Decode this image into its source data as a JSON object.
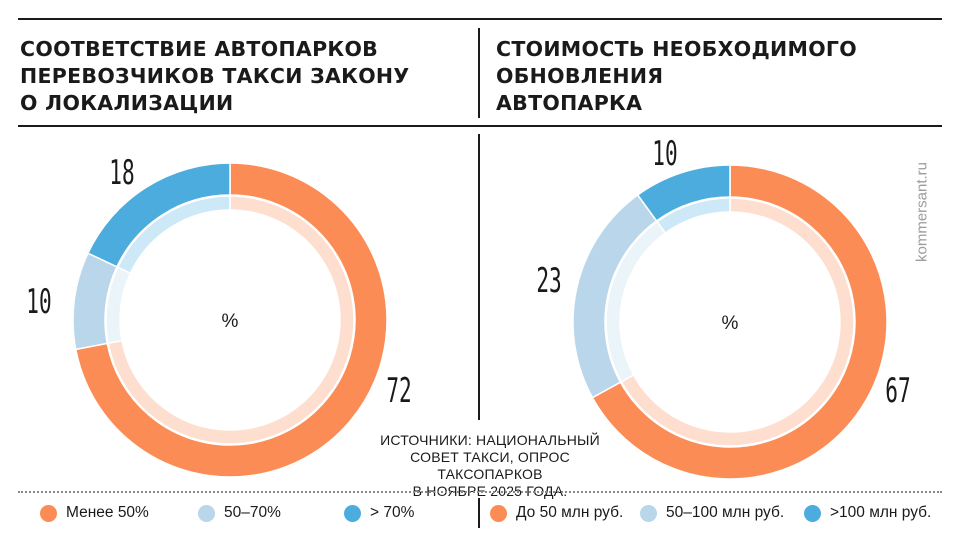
{
  "colors": {
    "orange": "#fb8c55",
    "light_blue": "#b9d6ea",
    "blue": "#4dacde"
  },
  "source": "ИСТОЧНИКИ: НАЦИОНАЛЬНЫЙ\nСОВЕТ ТАКСИ, ОПРОС ТАКСОПАРКОВ\nВ НОЯБРЕ 2025 ГОДА.",
  "watermark": "kommersant.ru",
  "chart_data": [
    {
      "type": "pie",
      "title": "СООТВЕТСТВИЕ АВТОПАРКОВ\nПЕРЕВОЗЧИКОВ ТАКСИ ЗАКОНУ\nО ЛОКАЛИЗАЦИИ",
      "unit_label": "%",
      "slices": [
        {
          "label": "Менее 50%",
          "value": 72,
          "color": "#fb8c55"
        },
        {
          "label": "50–70%",
          "value": 10,
          "color": "#b9d6ea"
        },
        {
          "label": "> 70%",
          "value": 18,
          "color": "#4dacde"
        }
      ]
    },
    {
      "type": "pie",
      "title": "СТОИМОСТЬ НЕОБХОДИМОГО\nОБНОВЛЕНИЯ\nАВТОПАРКА",
      "unit_label": "%",
      "slices": [
        {
          "label": "До 50 млн руб.",
          "value": 67,
          "color": "#fb8c55"
        },
        {
          "label": "50–100 млн руб.",
          "value": 23,
          "color": "#b9d6ea"
        },
        {
          "label": ">100 млн руб.",
          "value": 10,
          "color": "#4dacde"
        }
      ]
    }
  ]
}
